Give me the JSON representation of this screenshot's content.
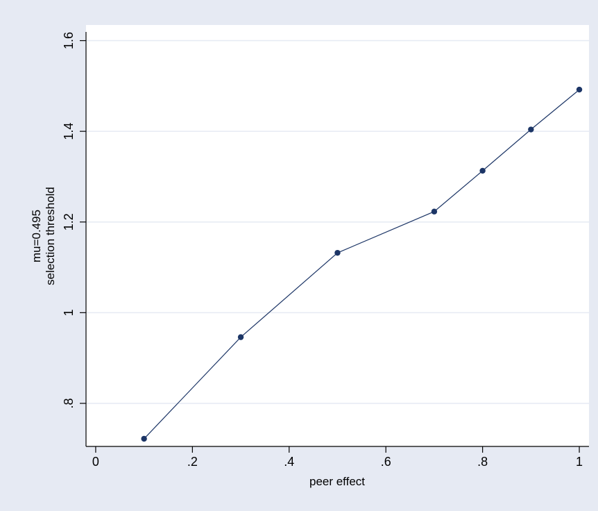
{
  "chart_data": {
    "type": "line",
    "title": "",
    "xlabel": "peer effect",
    "ylabel_lines": [
      "mu=0.495",
      "selection threshold"
    ],
    "xlim": [
      -0.02,
      1.02
    ],
    "ylim": [
      0.705,
      1.61
    ],
    "x_ticks": [
      0,
      0.2,
      0.4,
      0.6,
      0.8,
      1
    ],
    "x_tick_labels": [
      "0",
      ".2",
      ".4",
      ".6",
      ".8",
      "1"
    ],
    "y_ticks": [
      0.8,
      1.0,
      1.2,
      1.4,
      1.6
    ],
    "y_tick_labels": [
      ".8",
      "1",
      "1.2",
      "1.4",
      "1.6"
    ],
    "grid": "horizontal",
    "legend": "none",
    "series": [
      {
        "x": [
          0.1,
          0.3,
          0.5,
          0.7,
          0.8,
          0.9,
          1.0
        ],
        "y": [
          0.722,
          0.946,
          1.132,
          1.223,
          1.313,
          1.404,
          1.492
        ],
        "marker": "circle"
      }
    ],
    "colors": {
      "background": "#e6eaf3",
      "plot_area": "#ffffff",
      "line": "#1c3566",
      "marker": "#1c3566",
      "grid": "#e6eaf3",
      "axis": "#000000"
    }
  }
}
